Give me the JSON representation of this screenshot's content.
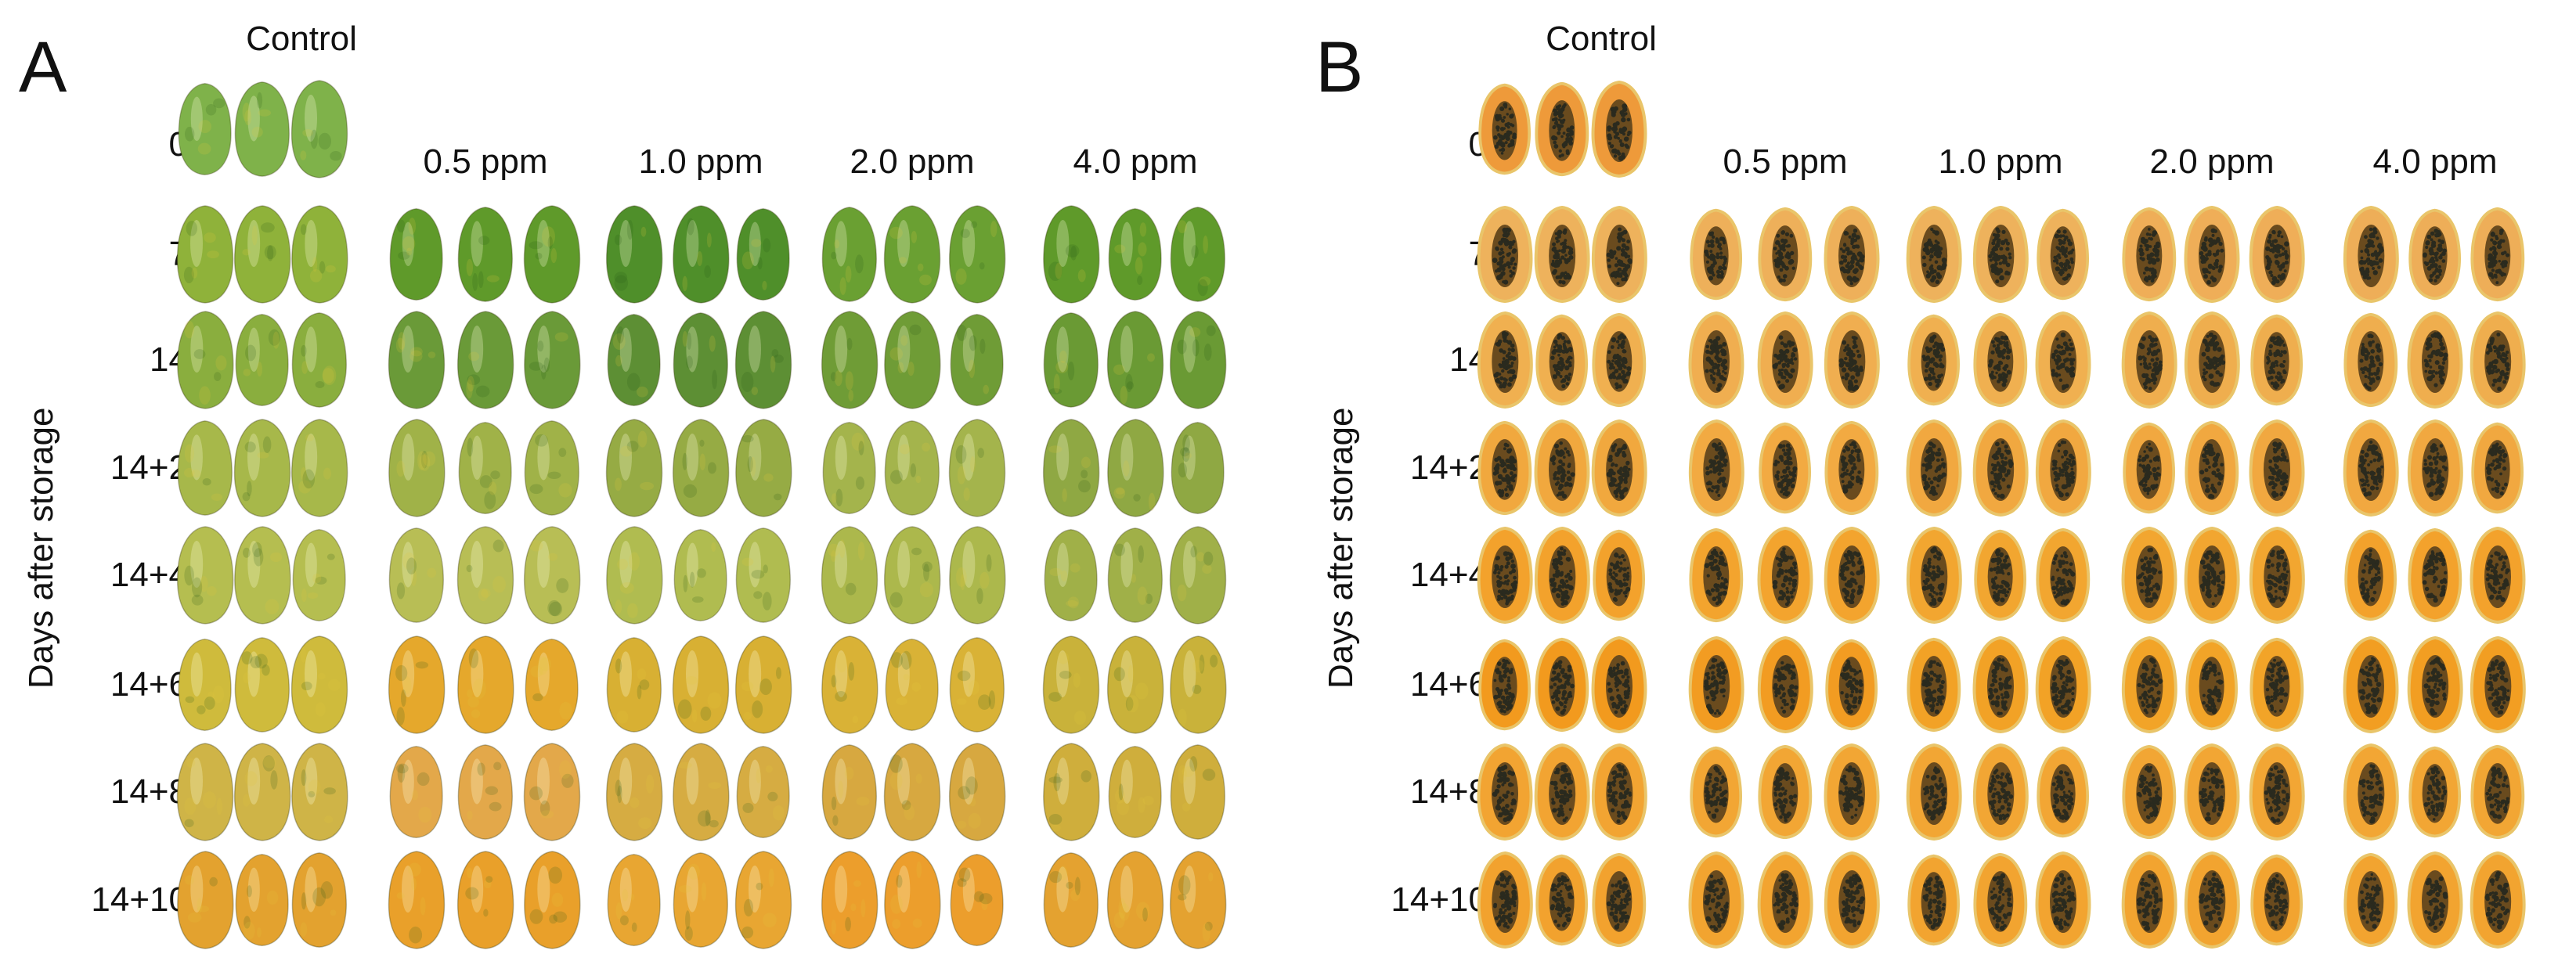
{
  "panels": [
    {
      "id": "a",
      "letter": "A",
      "view": "whole",
      "y_axis_label": "Days after storage",
      "control_label": "Control",
      "treatment_labels": [
        "0.5 ppm",
        "1.0 ppm",
        "2.0 ppm",
        "4.0 ppm"
      ],
      "row_labels": [
        "0",
        "7",
        "14",
        "14+2",
        "14+4",
        "14+6",
        "14+8",
        "14+10"
      ]
    },
    {
      "id": "b",
      "letter": "B",
      "view": "halved",
      "y_axis_label": "Days after storage",
      "control_label": "Control",
      "treatment_labels": [
        "0.5 ppm",
        "1.0 ppm",
        "2.0 ppm",
        "4.0 ppm"
      ],
      "row_labels": [
        "0",
        "7",
        "14",
        "14+2",
        "14+4",
        "14+6",
        "14+8",
        "14+10"
      ]
    }
  ],
  "colors": {
    "peel_by_stage": [
      [
        "#7fb24a",
        "#6e9e2f",
        "#8cb546",
        "#7aa93a",
        "#7aa93a"
      ],
      [
        "#8fb23a",
        "#5f9a2a",
        "#4f8f2a",
        "#6aa032",
        "#5f9a2a"
      ],
      [
        "#8aae3e",
        "#6a9a38",
        "#5d8f34",
        "#6f9c36",
        "#6a9a34"
      ],
      [
        "#a7b84a",
        "#a0b248",
        "#96ab44",
        "#a4b44c",
        "#8fa843"
      ],
      [
        "#b5be50",
        "#b8be55",
        "#b0bc50",
        "#acb84c",
        "#a0b048"
      ],
      [
        "#cfbb3c",
        "#e5a82c",
        "#d8b033",
        "#d9b236",
        "#c9b23a"
      ],
      [
        "#cfb447",
        "#e3a84a",
        "#d6ac42",
        "#d7a840",
        "#cfae3c"
      ],
      [
        "#e3a22f",
        "#e9a02a",
        "#e8a632",
        "#ec9e2c",
        "#e4a230"
      ]
    ],
    "flesh_by_stage": [
      [
        "#ee9a3a",
        "#ee9a3a",
        "#ee9a3a",
        "#ee9a3a",
        "#ee9a3a"
      ],
      [
        "#eeb25c",
        "#eeb05a",
        "#eeb25c",
        "#efae58",
        "#eeae58"
      ],
      [
        "#f0b050",
        "#f0ae50",
        "#f0b050",
        "#efae4e",
        "#efae4e"
      ],
      [
        "#f1a83e",
        "#f2aa42",
        "#f1a840",
        "#f1a840",
        "#f1a840"
      ],
      [
        "#f3a22c",
        "#f3a42e",
        "#f2a630",
        "#f2a630",
        "#f3a22c"
      ],
      [
        "#f29a1e",
        "#f29c22",
        "#f2a226",
        "#f2a428",
        "#f29e22"
      ],
      [
        "#f2a432",
        "#f2a634",
        "#f2a634",
        "#f2a634",
        "#f2a634"
      ],
      [
        "#f2a22e",
        "#f2a430",
        "#f2a430",
        "#f2a430",
        "#f2a430"
      ]
    ],
    "seed": "#2a2a1e",
    "cavity": "#6a4b1e"
  }
}
